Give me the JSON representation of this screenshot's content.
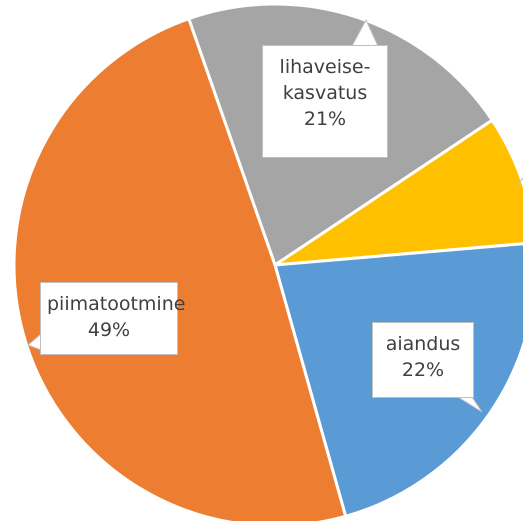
{
  "chart_data": {
    "type": "pie",
    "categories": [
      "lihaveise-kasvatus",
      null,
      "aiandus",
      "piimatootmine"
    ],
    "values": [
      21,
      8,
      22,
      49
    ],
    "value_labels": [
      "21%",
      null,
      "22%",
      "49%"
    ],
    "colors": [
      "#a5a5a5",
      "#ffc000",
      "#5b9bd5",
      "#ed7d31"
    ]
  }
}
